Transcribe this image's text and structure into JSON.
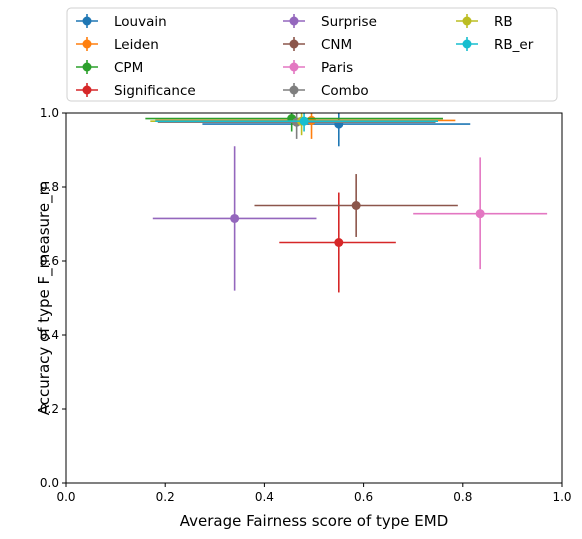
{
  "chart_data": {
    "type": "scatter",
    "xlabel": "Average Fairness score of type EMD",
    "ylabel": "Accuracy of type F_measure_m",
    "xlim": [
      0,
      1.0
    ],
    "ylim": [
      0,
      1.0
    ],
    "xticks": [
      "0.0",
      "0.2",
      "0.4",
      "0.6",
      "0.8",
      "1.0"
    ],
    "yticks": [
      "0.0",
      "0.2",
      "0.4",
      "0.6",
      "0.8",
      "1.0"
    ],
    "grid": false,
    "legend_position": "top-center outside",
    "legend_columns": 3,
    "error_bars": true,
    "series": [
      {
        "name": "Louvain",
        "color": "#1f77b4",
        "x": 0.55,
        "y": 0.97,
        "xerr": [
          0.275,
          0.815
        ],
        "yerr": [
          0.91,
          1.0
        ]
      },
      {
        "name": "Leiden",
        "color": "#ff7f0e",
        "x": 0.495,
        "y": 0.98,
        "xerr": [
          0.18,
          0.785
        ],
        "yerr": [
          0.93,
          1.0
        ]
      },
      {
        "name": "CPM",
        "color": "#2ca02c",
        "x": 0.455,
        "y": 0.985,
        "xerr": [
          0.16,
          0.76
        ],
        "yerr": [
          0.95,
          1.0
        ]
      },
      {
        "name": "Significance",
        "color": "#d62728",
        "x": 0.55,
        "y": 0.65,
        "xerr": [
          0.43,
          0.665
        ],
        "yerr": [
          0.515,
          0.785
        ]
      },
      {
        "name": "Surprise",
        "color": "#9467bd",
        "x": 0.34,
        "y": 0.715,
        "xerr": [
          0.175,
          0.505
        ],
        "yerr": [
          0.52,
          0.91
        ]
      },
      {
        "name": "CNM",
        "color": "#8c564b",
        "x": 0.585,
        "y": 0.75,
        "xerr": [
          0.38,
          0.79
        ],
        "yerr": [
          0.665,
          0.835
        ]
      },
      {
        "name": "Paris",
        "color": "#e377c2",
        "x": 0.835,
        "y": 0.728,
        "xerr": [
          0.7,
          0.97
        ],
        "yerr": [
          0.578,
          0.88
        ]
      },
      {
        "name": "Combo",
        "color": "#7f7f7f",
        "x": 0.465,
        "y": 0.975,
        "xerr": [
          0.185,
          0.745
        ],
        "yerr": [
          0.93,
          1.0
        ]
      },
      {
        "name": "RB",
        "color": "#bcbd22",
        "x": 0.475,
        "y": 0.978,
        "xerr": [
          0.17,
          0.75
        ],
        "yerr": [
          0.94,
          1.0
        ]
      },
      {
        "name": "RB_er",
        "color": "#17becf",
        "x": 0.48,
        "y": 0.978,
        "xerr": [
          0.18,
          0.75
        ],
        "yerr": [
          0.95,
          1.0
        ]
      }
    ]
  }
}
